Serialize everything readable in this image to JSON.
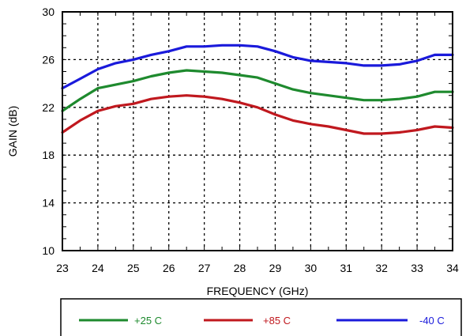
{
  "chart_data": {
    "type": "line",
    "xlabel": "FREQUENCY (GHz)",
    "ylabel": "GAIN (dB)",
    "xlim": [
      23,
      34
    ],
    "ylim": [
      10,
      30
    ],
    "x_ticks": [
      "23",
      "24",
      "25",
      "26",
      "27",
      "28",
      "29",
      "30",
      "31",
      "32",
      "33",
      "34"
    ],
    "y_ticks": [
      "10",
      "14",
      "18",
      "22",
      "26",
      "30"
    ],
    "grid": true,
    "legend_position": "bottom",
    "series": [
      {
        "name": "+25 C",
        "color": "#1e8a2e",
        "x": [
          23,
          23.5,
          24,
          24.5,
          25,
          25.5,
          26,
          26.5,
          27,
          27.5,
          28,
          28.5,
          29,
          29.5,
          30,
          30.5,
          31,
          31.5,
          32,
          32.5,
          33,
          33.5,
          34
        ],
        "y": [
          21.7,
          22.7,
          23.6,
          23.9,
          24.2,
          24.6,
          24.9,
          25.1,
          25.0,
          24.9,
          24.7,
          24.5,
          24.0,
          23.5,
          23.2,
          23.0,
          22.8,
          22.6,
          22.6,
          22.7,
          22.9,
          23.3,
          23.3
        ]
      },
      {
        "name": "+85 C",
        "color": "#c0181e",
        "x": [
          23,
          23.5,
          24,
          24.5,
          25,
          25.5,
          26,
          26.5,
          27,
          27.5,
          28,
          28.5,
          29,
          29.5,
          30,
          30.5,
          31,
          31.5,
          32,
          32.5,
          33,
          33.5,
          34
        ],
        "y": [
          19.9,
          20.9,
          21.7,
          22.1,
          22.3,
          22.7,
          22.9,
          23.0,
          22.9,
          22.7,
          22.4,
          22.0,
          21.4,
          20.9,
          20.6,
          20.4,
          20.1,
          19.8,
          19.8,
          19.9,
          20.1,
          20.4,
          20.3
        ]
      },
      {
        "name": "-40 C",
        "color": "#1a1adb",
        "x": [
          23,
          23.5,
          24,
          24.5,
          25,
          25.5,
          26,
          26.5,
          27,
          27.5,
          28,
          28.5,
          29,
          29.5,
          30,
          30.5,
          31,
          31.5,
          32,
          32.5,
          33,
          33.5,
          34
        ],
        "y": [
          23.6,
          24.4,
          25.2,
          25.7,
          26.0,
          26.4,
          26.7,
          27.1,
          27.1,
          27.2,
          27.2,
          27.1,
          26.7,
          26.2,
          25.9,
          25.8,
          25.7,
          25.5,
          25.5,
          25.6,
          25.9,
          26.4,
          26.4
        ]
      }
    ]
  }
}
